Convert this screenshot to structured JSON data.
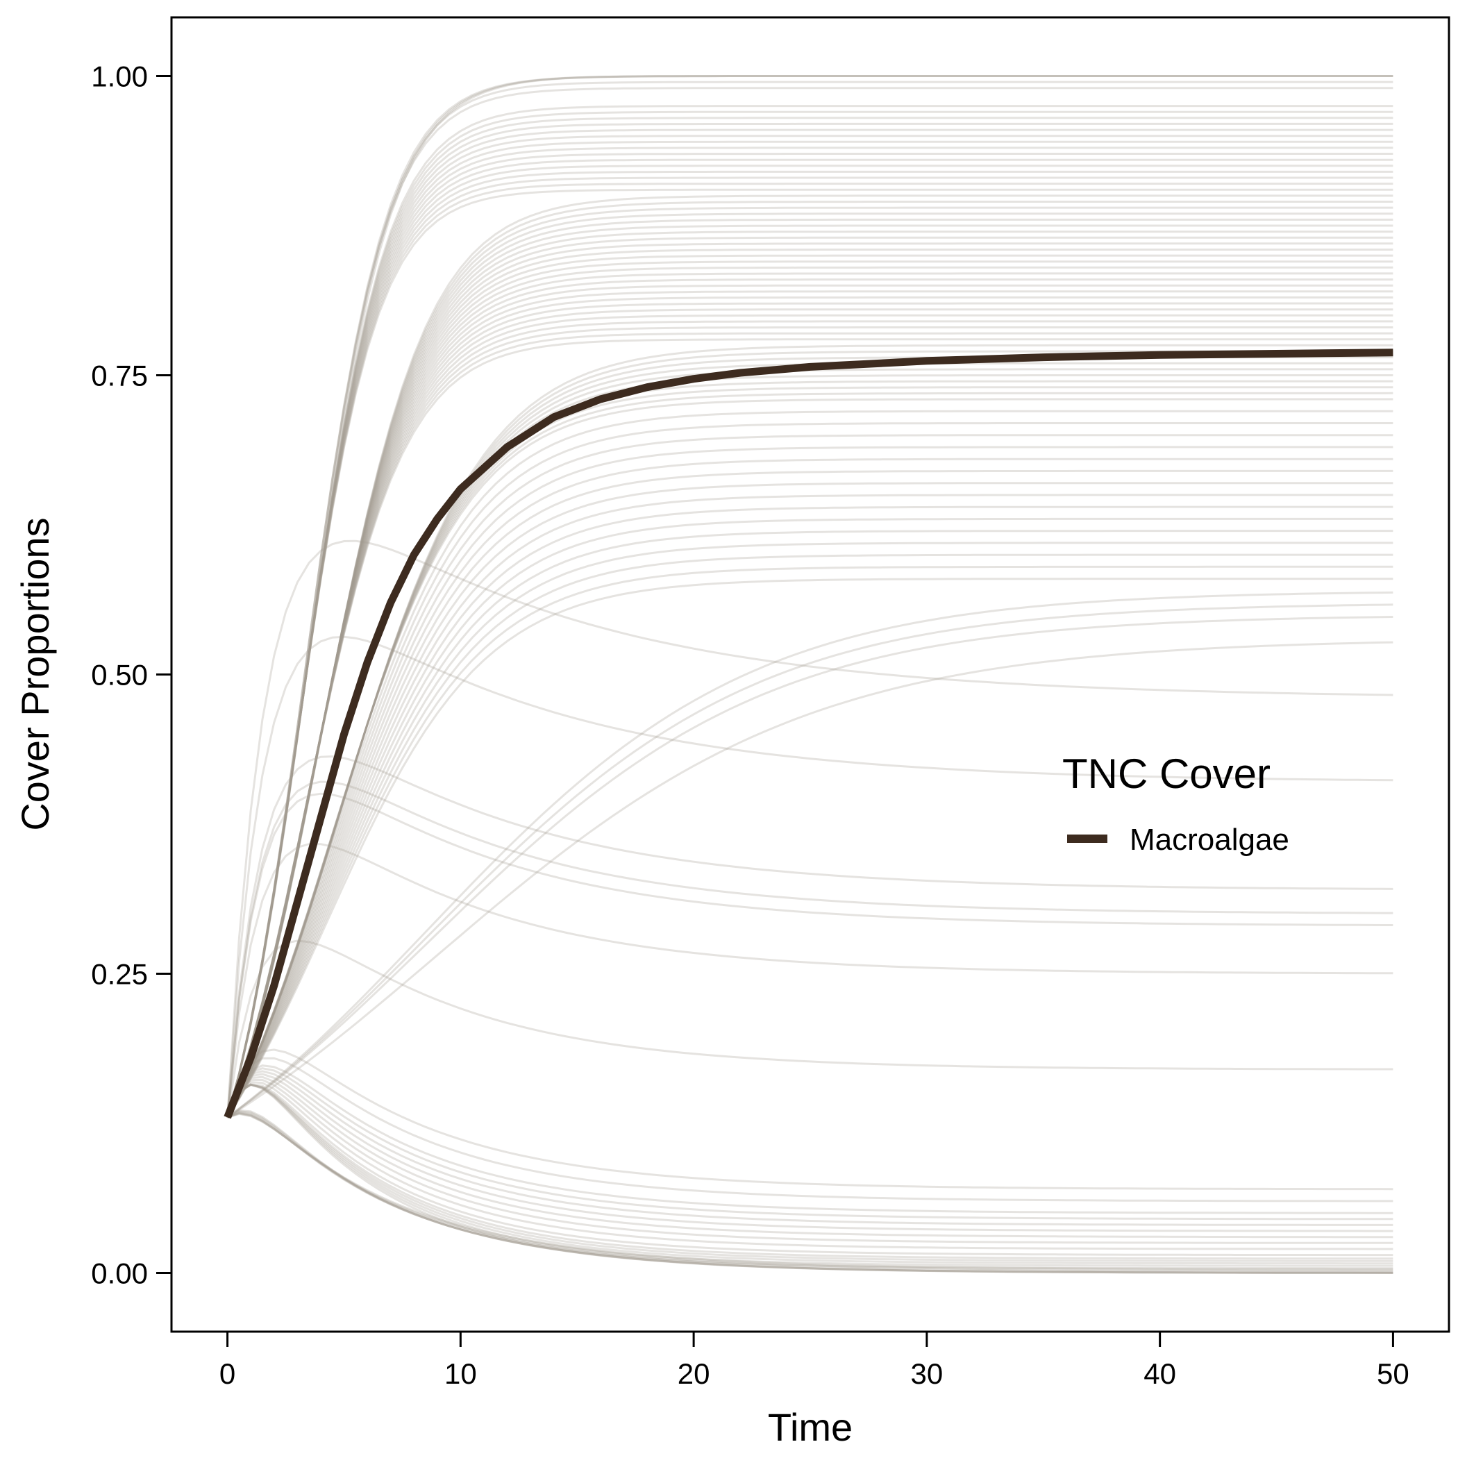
{
  "chart_data": {
    "type": "line",
    "title": "",
    "xlabel": "Time",
    "ylabel": "Cover Proportions",
    "xlim": [
      -2.4,
      52.4
    ],
    "ylim": [
      -0.049,
      1.049
    ],
    "x_ticks": [
      0,
      10,
      20,
      30,
      40,
      50
    ],
    "x_tick_labels": [
      "0",
      "10",
      "20",
      "30",
      "40",
      "50"
    ],
    "y_ticks": [
      0,
      0.25,
      0.5,
      0.75,
      1.0
    ],
    "y_tick_labels": [
      "0.00",
      "0.25",
      "0.50",
      "0.75",
      "1.00"
    ],
    "grid": false,
    "legend": {
      "title": "TNC Cover",
      "position": "inside right",
      "entries": [
        {
          "label": "Macroalgae",
          "color": "#3d2b1f"
        }
      ]
    },
    "colors": {
      "highlight": "#3d2b1f",
      "ensemble": "#a39a90"
    },
    "series": [
      {
        "name": "Macroalgae",
        "role": "highlighted mean trajectory",
        "x": [
          0,
          1,
          2,
          3,
          4,
          5,
          6,
          7,
          8,
          9,
          10,
          12,
          14,
          16,
          18,
          20,
          22,
          25,
          30,
          35,
          40,
          45,
          50
        ],
        "values": [
          0.13,
          0.18,
          0.24,
          0.31,
          0.38,
          0.45,
          0.51,
          0.56,
          0.6,
          0.63,
          0.655,
          0.69,
          0.715,
          0.73,
          0.74,
          0.747,
          0.752,
          0.757,
          0.762,
          0.765,
          0.767,
          0.768,
          0.769
        ]
      }
    ],
    "ensemble": {
      "description": "grey simulation trajectories",
      "start": 0.13,
      "end_values": [
        1.0,
        1.0,
        1.0,
        0.995,
        0.99,
        0.975,
        0.97,
        0.965,
        0.96,
        0.955,
        0.95,
        0.945,
        0.94,
        0.935,
        0.93,
        0.925,
        0.92,
        0.915,
        0.91,
        0.905,
        0.9,
        0.895,
        0.89,
        0.885,
        0.88,
        0.875,
        0.87,
        0.865,
        0.86,
        0.855,
        0.85,
        0.845,
        0.84,
        0.835,
        0.83,
        0.825,
        0.82,
        0.815,
        0.81,
        0.805,
        0.8,
        0.795,
        0.79,
        0.785,
        0.78,
        0.775,
        0.77,
        0.765,
        0.76,
        0.755,
        0.75,
        0.745,
        0.74,
        0.735,
        0.73,
        0.72,
        0.71,
        0.7,
        0.69,
        0.68,
        0.67,
        0.66,
        0.65,
        0.64,
        0.63,
        0.62,
        0.61,
        0.6,
        0.59,
        0.58,
        0.57,
        0.56,
        0.55,
        0.53,
        0.48,
        0.41,
        0.32,
        0.3,
        0.29,
        0.25,
        0.17,
        0.07,
        0.06,
        0.05,
        0.045,
        0.04,
        0.035,
        0.03,
        0.025,
        0.02,
        0.015,
        0.012,
        0.01,
        0.008,
        0.006,
        0.004,
        0.003,
        0.002,
        0.001,
        0.0,
        0.0,
        0.0,
        0.0
      ]
    }
  }
}
